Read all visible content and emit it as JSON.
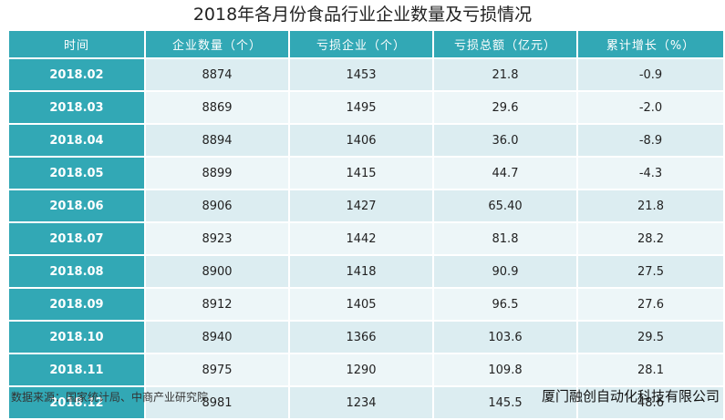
{
  "title": "2018年各月份食品行业企业数量及亏损情况",
  "headers": [
    "时间",
    "企业数量（个）",
    "亏损企业（个）",
    "亏损总额（亿元）",
    "累计增长（%）"
  ],
  "rows": [
    [
      "2018.02",
      "8874",
      "1453",
      "21.8",
      "-0.9"
    ],
    [
      "2018.03",
      "8869",
      "1495",
      "29.6",
      "-2.0"
    ],
    [
      "2018.04",
      "8894",
      "1406",
      "36.0",
      "-8.9"
    ],
    [
      "2018.05",
      "8899",
      "1415",
      "44.7",
      "-4.3"
    ],
    [
      "2018.06",
      "8906",
      "1427",
      "65.40",
      "21.8"
    ],
    [
      "2018.07",
      "8923",
      "1442",
      "81.8",
      "28.2"
    ],
    [
      "2018.08",
      "8900",
      "1418",
      "90.9",
      "27.5"
    ],
    [
      "2018.09",
      "8912",
      "1405",
      "96.5",
      "27.6"
    ],
    [
      "2018.10",
      "8940",
      "1366",
      "103.6",
      "29.5"
    ],
    [
      "2018.11",
      "8975",
      "1290",
      "109.8",
      "28.1"
    ],
    [
      "2018.12",
      "8981",
      "1234",
      "145.5",
      "48.6"
    ]
  ],
  "source": "数据来源：国家统计局、中商产业研究院",
  "company": "厦门融创自动化科技有限公司",
  "colors": {
    "header_bg": "#32a8b5",
    "row_odd": "#dcedf1",
    "row_even": "#edf6f8"
  }
}
